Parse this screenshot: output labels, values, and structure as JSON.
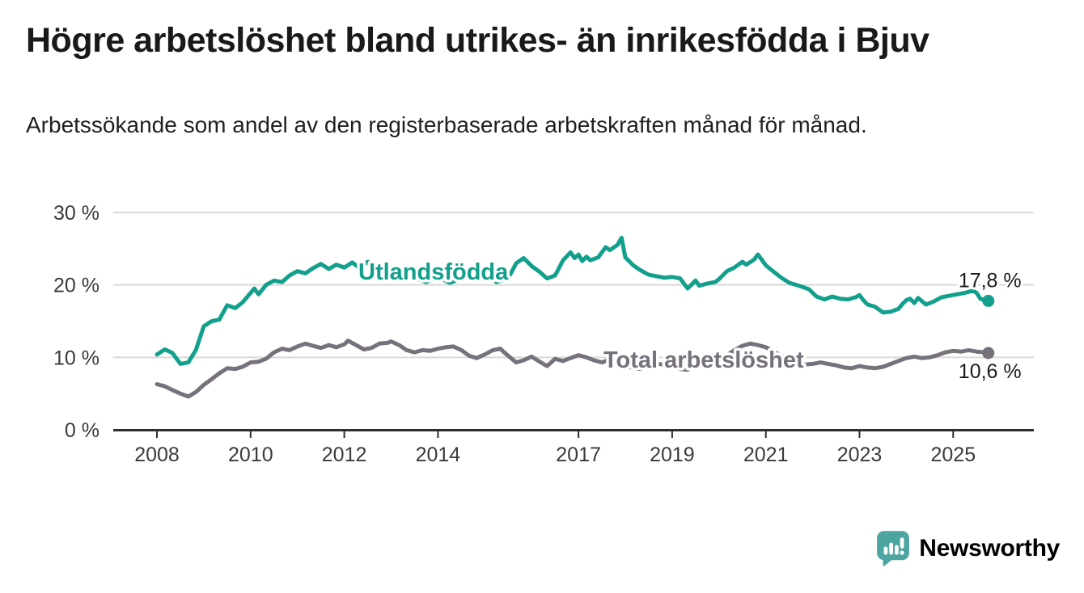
{
  "header": {
    "title": "Högre arbetslöshet bland utrikes- än inrikesfödda i Bjuv",
    "subtitle": "Arbetssökande som andel av den registerbaserade arbetskraften månad för månad."
  },
  "footer": {
    "brand": "Newsworthy",
    "brand_color": "#4da5a2",
    "logo_icon": "newsworthy-chart-bubble-icon"
  },
  "colors": {
    "background": "#ffffff",
    "title_text": "#191919",
    "axis_text": "#3a3a3a",
    "axis_line": "#2e2e2e",
    "gridline": "#d9d9d9",
    "foreign_born_line": "#12a08c",
    "total_line": "#76717a"
  },
  "chart_data": {
    "type": "line",
    "title": "Högre arbetslöshet bland utrikes- än inrikesfödda i Bjuv",
    "subtitle": "Arbetssökande som andel av den registerbaserade arbetskraften månad för månad.",
    "xlabel": "",
    "ylabel": "%",
    "ylim": [
      0,
      30
    ],
    "xlim": [
      2007.9,
      2026.6
    ],
    "grid": "horizontal",
    "legend": "inline-labels",
    "y_ticks": [
      {
        "value": 0,
        "label": "0 %"
      },
      {
        "value": 10,
        "label": "10 %"
      },
      {
        "value": 20,
        "label": "20 %"
      },
      {
        "value": 30,
        "label": "30 %"
      }
    ],
    "x_ticks": [
      {
        "value": 2008,
        "label": "2008"
      },
      {
        "value": 2010,
        "label": "2010"
      },
      {
        "value": 2012,
        "label": "2012"
      },
      {
        "value": 2014,
        "label": "2014"
      },
      {
        "value": 2017,
        "label": "2017"
      },
      {
        "value": 2019,
        "label": "2019"
      },
      {
        "value": 2021,
        "label": "2021"
      },
      {
        "value": 2023,
        "label": "2023"
      },
      {
        "value": 2025,
        "label": "2025"
      }
    ],
    "series": [
      {
        "name": "Utlandsfödda",
        "color": "#12a08c",
        "end_label": "17,8 %",
        "end_value": 17.8,
        "points": [
          [
            2008.0,
            10.4
          ],
          [
            2008.17,
            11.1
          ],
          [
            2008.33,
            10.6
          ],
          [
            2008.5,
            9.1
          ],
          [
            2008.67,
            9.3
          ],
          [
            2008.83,
            11.0
          ],
          [
            2009.0,
            14.3
          ],
          [
            2009.17,
            15.0
          ],
          [
            2009.33,
            15.2
          ],
          [
            2009.5,
            17.2
          ],
          [
            2009.67,
            16.8
          ],
          [
            2009.83,
            17.6
          ],
          [
            2010.0,
            18.9
          ],
          [
            2010.08,
            19.5
          ],
          [
            2010.17,
            18.7
          ],
          [
            2010.33,
            20.0
          ],
          [
            2010.5,
            20.6
          ],
          [
            2010.67,
            20.4
          ],
          [
            2010.83,
            21.3
          ],
          [
            2011.0,
            21.9
          ],
          [
            2011.17,
            21.6
          ],
          [
            2011.33,
            22.3
          ],
          [
            2011.5,
            22.9
          ],
          [
            2011.67,
            22.2
          ],
          [
            2011.83,
            22.8
          ],
          [
            2012.0,
            22.4
          ],
          [
            2012.17,
            23.1
          ],
          [
            2012.33,
            22.3
          ],
          [
            2012.5,
            23.2
          ],
          [
            2012.67,
            22.5
          ],
          [
            2012.83,
            23.0
          ],
          [
            2013.0,
            22.4
          ],
          [
            2013.25,
            21.7
          ],
          [
            2013.5,
            20.9
          ],
          [
            2013.75,
            20.4
          ],
          [
            2014.0,
            21.1
          ],
          [
            2014.25,
            20.3
          ],
          [
            2014.5,
            20.9
          ],
          [
            2014.75,
            21.2
          ],
          [
            2015.0,
            21.4
          ],
          [
            2015.25,
            20.4
          ],
          [
            2015.5,
            20.9
          ],
          [
            2015.67,
            23.0
          ],
          [
            2015.83,
            23.7
          ],
          [
            2016.0,
            22.6
          ],
          [
            2016.17,
            21.8
          ],
          [
            2016.33,
            20.9
          ],
          [
            2016.5,
            21.3
          ],
          [
            2016.67,
            23.4
          ],
          [
            2016.83,
            24.5
          ],
          [
            2016.92,
            23.7
          ],
          [
            2017.0,
            24.2
          ],
          [
            2017.08,
            23.3
          ],
          [
            2017.17,
            23.9
          ],
          [
            2017.25,
            23.4
          ],
          [
            2017.42,
            23.8
          ],
          [
            2017.58,
            25.2
          ],
          [
            2017.67,
            24.8
          ],
          [
            2017.83,
            25.5
          ],
          [
            2017.92,
            26.5
          ],
          [
            2018.0,
            23.8
          ],
          [
            2018.17,
            22.7
          ],
          [
            2018.33,
            22.0
          ],
          [
            2018.5,
            21.4
          ],
          [
            2018.67,
            21.2
          ],
          [
            2018.83,
            21.0
          ],
          [
            2019.0,
            21.1
          ],
          [
            2019.17,
            20.9
          ],
          [
            2019.33,
            19.5
          ],
          [
            2019.5,
            20.6
          ],
          [
            2019.58,
            19.9
          ],
          [
            2019.75,
            20.2
          ],
          [
            2019.92,
            20.4
          ],
          [
            2020.0,
            20.8
          ],
          [
            2020.17,
            21.9
          ],
          [
            2020.33,
            22.4
          ],
          [
            2020.5,
            23.2
          ],
          [
            2020.58,
            22.8
          ],
          [
            2020.75,
            23.5
          ],
          [
            2020.83,
            24.2
          ],
          [
            2021.0,
            22.7
          ],
          [
            2021.17,
            21.8
          ],
          [
            2021.33,
            21.0
          ],
          [
            2021.5,
            20.3
          ],
          [
            2021.75,
            19.8
          ],
          [
            2021.92,
            19.4
          ],
          [
            2022.08,
            18.4
          ],
          [
            2022.25,
            18.0
          ],
          [
            2022.42,
            18.4
          ],
          [
            2022.58,
            18.1
          ],
          [
            2022.75,
            18.0
          ],
          [
            2022.92,
            18.3
          ],
          [
            2023.0,
            18.6
          ],
          [
            2023.08,
            17.9
          ],
          [
            2023.17,
            17.3
          ],
          [
            2023.33,
            17.0
          ],
          [
            2023.5,
            16.2
          ],
          [
            2023.67,
            16.3
          ],
          [
            2023.83,
            16.7
          ],
          [
            2023.92,
            17.4
          ],
          [
            2024.0,
            17.9
          ],
          [
            2024.08,
            18.1
          ],
          [
            2024.17,
            17.5
          ],
          [
            2024.25,
            18.2
          ],
          [
            2024.42,
            17.3
          ],
          [
            2024.58,
            17.7
          ],
          [
            2024.75,
            18.3
          ],
          [
            2024.92,
            18.5
          ],
          [
            2025.08,
            18.7
          ],
          [
            2025.25,
            18.9
          ],
          [
            2025.42,
            19.2
          ],
          [
            2025.5,
            18.9
          ],
          [
            2025.58,
            18.1
          ],
          [
            2025.67,
            17.9
          ],
          [
            2025.75,
            17.8
          ]
        ]
      },
      {
        "name": "Total arbetslöshet",
        "color": "#76717a",
        "end_label": "10,6 %",
        "end_value": 10.6,
        "points": [
          [
            2008.0,
            6.3
          ],
          [
            2008.17,
            6.0
          ],
          [
            2008.33,
            5.5
          ],
          [
            2008.5,
            5.0
          ],
          [
            2008.67,
            4.6
          ],
          [
            2008.83,
            5.2
          ],
          [
            2009.0,
            6.2
          ],
          [
            2009.17,
            7.0
          ],
          [
            2009.33,
            7.8
          ],
          [
            2009.5,
            8.5
          ],
          [
            2009.67,
            8.4
          ],
          [
            2009.83,
            8.7
          ],
          [
            2010.0,
            9.3
          ],
          [
            2010.17,
            9.4
          ],
          [
            2010.33,
            9.8
          ],
          [
            2010.5,
            10.7
          ],
          [
            2010.67,
            11.2
          ],
          [
            2010.83,
            11.0
          ],
          [
            2011.0,
            11.5
          ],
          [
            2011.17,
            11.9
          ],
          [
            2011.33,
            11.6
          ],
          [
            2011.5,
            11.3
          ],
          [
            2011.67,
            11.7
          ],
          [
            2011.83,
            11.4
          ],
          [
            2012.0,
            11.8
          ],
          [
            2012.08,
            12.3
          ],
          [
            2012.25,
            11.7
          ],
          [
            2012.42,
            11.1
          ],
          [
            2012.58,
            11.3
          ],
          [
            2012.75,
            11.9
          ],
          [
            2012.92,
            12.0
          ],
          [
            2013.0,
            12.2
          ],
          [
            2013.17,
            11.7
          ],
          [
            2013.33,
            11.0
          ],
          [
            2013.5,
            10.7
          ],
          [
            2013.67,
            11.0
          ],
          [
            2013.83,
            10.9
          ],
          [
            2014.0,
            11.2
          ],
          [
            2014.17,
            11.4
          ],
          [
            2014.33,
            11.5
          ],
          [
            2014.5,
            11.0
          ],
          [
            2014.67,
            10.2
          ],
          [
            2014.83,
            9.9
          ],
          [
            2015.0,
            10.4
          ],
          [
            2015.17,
            11.0
          ],
          [
            2015.33,
            11.2
          ],
          [
            2015.5,
            10.2
          ],
          [
            2015.67,
            9.3
          ],
          [
            2015.83,
            9.6
          ],
          [
            2016.0,
            10.1
          ],
          [
            2016.17,
            9.4
          ],
          [
            2016.33,
            8.8
          ],
          [
            2016.5,
            9.8
          ],
          [
            2016.67,
            9.5
          ],
          [
            2016.83,
            9.9
          ],
          [
            2017.0,
            10.3
          ],
          [
            2017.17,
            10.0
          ],
          [
            2017.33,
            9.6
          ],
          [
            2017.5,
            9.3
          ],
          [
            2017.67,
            9.7
          ],
          [
            2017.83,
            9.4
          ],
          [
            2018.0,
            9.0
          ],
          [
            2018.17,
            8.5
          ],
          [
            2018.33,
            8.4
          ],
          [
            2018.5,
            8.7
          ],
          [
            2018.67,
            9.1
          ],
          [
            2018.83,
            9.0
          ],
          [
            2019.0,
            8.7
          ],
          [
            2019.17,
            8.4
          ],
          [
            2019.33,
            8.3
          ],
          [
            2019.5,
            8.9
          ],
          [
            2019.67,
            9.2
          ],
          [
            2019.83,
            9.5
          ],
          [
            2020.0,
            9.8
          ],
          [
            2020.17,
            10.3
          ],
          [
            2020.33,
            11.0
          ],
          [
            2020.5,
            11.6
          ],
          [
            2020.67,
            11.9
          ],
          [
            2020.83,
            11.7
          ],
          [
            2021.0,
            11.4
          ],
          [
            2021.17,
            10.8
          ],
          [
            2021.33,
            10.2
          ],
          [
            2021.5,
            9.5
          ],
          [
            2021.67,
            9.1
          ],
          [
            2021.83,
            9.0
          ],
          [
            2022.0,
            9.1
          ],
          [
            2022.17,
            9.3
          ],
          [
            2022.33,
            9.1
          ],
          [
            2022.5,
            8.9
          ],
          [
            2022.67,
            8.6
          ],
          [
            2022.83,
            8.5
          ],
          [
            2023.0,
            8.8
          ],
          [
            2023.17,
            8.6
          ],
          [
            2023.33,
            8.5
          ],
          [
            2023.5,
            8.7
          ],
          [
            2023.67,
            9.1
          ],
          [
            2023.83,
            9.5
          ],
          [
            2024.0,
            9.9
          ],
          [
            2024.17,
            10.1
          ],
          [
            2024.33,
            9.9
          ],
          [
            2024.5,
            10.0
          ],
          [
            2024.67,
            10.3
          ],
          [
            2024.83,
            10.7
          ],
          [
            2025.0,
            10.9
          ],
          [
            2025.17,
            10.8
          ],
          [
            2025.33,
            11.0
          ],
          [
            2025.5,
            10.8
          ],
          [
            2025.67,
            10.7
          ],
          [
            2025.75,
            10.6
          ]
        ]
      }
    ]
  }
}
